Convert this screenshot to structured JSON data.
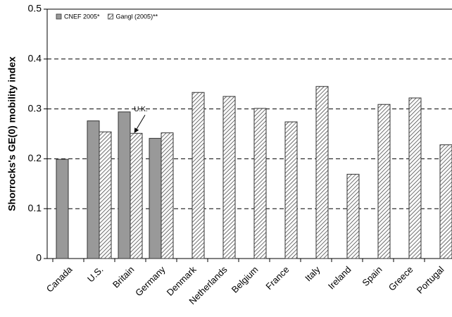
{
  "chart_data": {
    "type": "bar",
    "y_label": "Shorrocks's GE(0) mobility index",
    "categories": [
      "Canada",
      "U.S.",
      "Britain",
      "Germany",
      "Denmark",
      "Netherlands",
      "Belgium",
      "France",
      "Italy",
      "Ireland",
      "Spain",
      "Greece",
      "Portugal"
    ],
    "series": [
      {
        "name": "CNEF 2005*",
        "color": "#999999",
        "hatch": false,
        "values": [
          0.199,
          0.276,
          0.294,
          0.241,
          null,
          null,
          null,
          null,
          null,
          null,
          null,
          null,
          null
        ]
      },
      {
        "name": "Gangl (2005)**",
        "color": "#333333",
        "hatch": true,
        "values": [
          null,
          0.254,
          0.251,
          0.252,
          0.333,
          0.325,
          0.301,
          0.274,
          0.345,
          0.169,
          0.309,
          0.322,
          0.228
        ]
      }
    ],
    "ylim": [
      0,
      0.5
    ],
    "yticks": [
      0,
      0.1,
      0.2,
      0.3,
      0.4,
      0.5
    ],
    "grid": true,
    "legend": "top-left",
    "annotations": [
      {
        "text": "U.K.",
        "category": "Britain",
        "series": 1
      }
    ]
  }
}
